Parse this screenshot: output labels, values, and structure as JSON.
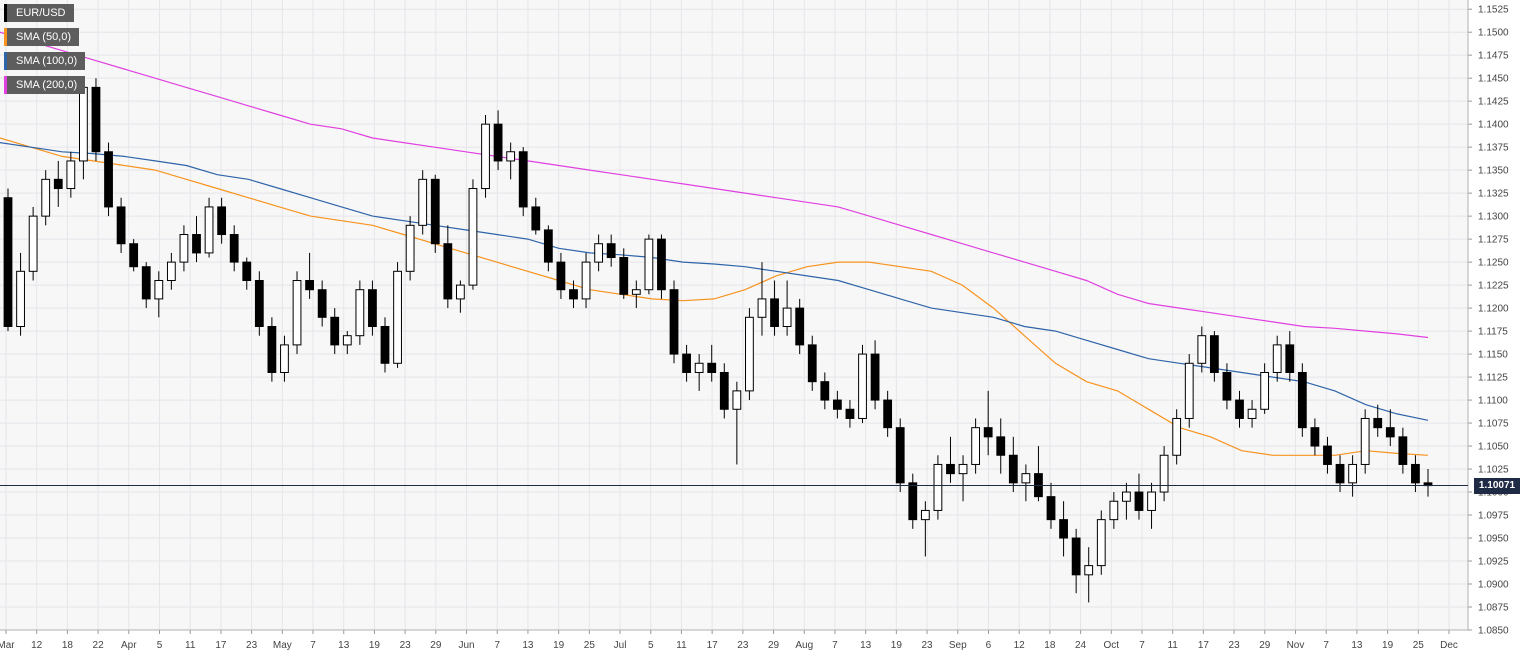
{
  "chart_data": {
    "type": "candlestick",
    "title": "",
    "xlabel": "",
    "ylabel": "",
    "ylim": [
      1.085,
      1.1535
    ],
    "grid": true,
    "legend_placement": "top-left",
    "y_ticks": [
      "1.1525",
      "1.1500",
      "1.1475",
      "1.1450",
      "1.1425",
      "1.1400",
      "1.1375",
      "1.1350",
      "1.1325",
      "1.1300",
      "1.1275",
      "1.1250",
      "1.1225",
      "1.1200",
      "1.1175",
      "1.1150",
      "1.1125",
      "1.1100",
      "1.1075",
      "1.1050",
      "1.1025",
      "1.1000",
      "1.0975",
      "1.0950",
      "1.0925",
      "1.0900",
      "1.0875",
      "1.0850"
    ],
    "x_ticks": [
      "Mar",
      "12",
      "18",
      "22",
      "Apr",
      "5",
      "11",
      "17",
      "23",
      "May",
      "7",
      "13",
      "19",
      "23",
      "29",
      "Jun",
      "7",
      "13",
      "19",
      "25",
      "Jul",
      "5",
      "11",
      "17",
      "23",
      "29",
      "Aug",
      "7",
      "13",
      "19",
      "23",
      "Sep",
      "6",
      "12",
      "18",
      "24",
      "Oct",
      "7",
      "11",
      "17",
      "23",
      "29",
      "Nov",
      "7",
      "13",
      "19",
      "25",
      "Dec"
    ],
    "current_price": "1.10071",
    "series": [
      {
        "name": "EUR/USD",
        "color": "#000000"
      },
      {
        "name": "SMA (50,0)",
        "color": "#f7931e",
        "values": [
          1.1385,
          1.1375,
          1.1365,
          1.136,
          1.1355,
          1.135,
          1.134,
          1.133,
          1.132,
          1.131,
          1.13,
          1.1295,
          1.129,
          1.128,
          1.127,
          1.126,
          1.125,
          1.124,
          1.123,
          1.122,
          1.1215,
          1.121,
          1.1208,
          1.121,
          1.122,
          1.1235,
          1.1245,
          1.125,
          1.125,
          1.1245,
          1.124,
          1.1225,
          1.12,
          1.117,
          1.114,
          1.112,
          1.111,
          1.109,
          1.107,
          1.106,
          1.1045,
          1.104,
          1.104,
          1.104,
          1.1045,
          1.1042,
          1.104
        ]
      },
      {
        "name": "SMA (100,0)",
        "color": "#2e64a8",
        "values": [
          1.138,
          1.1375,
          1.137,
          1.1368,
          1.1365,
          1.136,
          1.1355,
          1.1345,
          1.134,
          1.133,
          1.132,
          1.131,
          1.13,
          1.1295,
          1.129,
          1.1285,
          1.128,
          1.1275,
          1.1265,
          1.126,
          1.1258,
          1.1255,
          1.125,
          1.1248,
          1.1245,
          1.124,
          1.1235,
          1.123,
          1.122,
          1.121,
          1.12,
          1.1195,
          1.119,
          1.118,
          1.1175,
          1.1165,
          1.1155,
          1.1145,
          1.114,
          1.1135,
          1.113,
          1.1125,
          1.112,
          1.111,
          1.1095,
          1.1085,
          1.1078
        ]
      },
      {
        "name": "SMA (200,0)",
        "color": "#e040e0",
        "values": [
          1.15,
          1.149,
          1.148,
          1.147,
          1.146,
          1.145,
          1.144,
          1.143,
          1.142,
          1.141,
          1.14,
          1.1395,
          1.1385,
          1.138,
          1.1375,
          1.137,
          1.1365,
          1.136,
          1.1355,
          1.135,
          1.1345,
          1.134,
          1.1335,
          1.133,
          1.1325,
          1.132,
          1.1315,
          1.131,
          1.13,
          1.129,
          1.128,
          1.127,
          1.126,
          1.125,
          1.124,
          1.123,
          1.1215,
          1.1205,
          1.12,
          1.1195,
          1.119,
          1.1185,
          1.118,
          1.1178,
          1.1175,
          1.1172,
          1.1168
        ]
      }
    ],
    "candles": [
      [
        1.132,
        1.133,
        1.1175,
        1.118
      ],
      [
        1.118,
        1.126,
        1.117,
        1.124
      ],
      [
        1.124,
        1.131,
        1.123,
        1.13
      ],
      [
        1.13,
        1.135,
        1.129,
        1.134
      ],
      [
        1.134,
        1.136,
        1.131,
        1.133
      ],
      [
        1.133,
        1.137,
        1.132,
        1.136
      ],
      [
        1.136,
        1.145,
        1.134,
        1.144
      ],
      [
        1.144,
        1.145,
        1.136,
        1.137
      ],
      [
        1.137,
        1.138,
        1.13,
        1.131
      ],
      [
        1.131,
        1.132,
        1.126,
        1.127
      ],
      [
        1.127,
        1.1275,
        1.124,
        1.1245
      ],
      [
        1.1245,
        1.125,
        1.12,
        1.121
      ],
      [
        1.121,
        1.124,
        1.119,
        1.123
      ],
      [
        1.123,
        1.126,
        1.122,
        1.125
      ],
      [
        1.125,
        1.129,
        1.124,
        1.128
      ],
      [
        1.128,
        1.13,
        1.125,
        1.126
      ],
      [
        1.126,
        1.132,
        1.1255,
        1.131
      ],
      [
        1.131,
        1.132,
        1.127,
        1.128
      ],
      [
        1.128,
        1.129,
        1.124,
        1.125
      ],
      [
        1.125,
        1.1255,
        1.122,
        1.123
      ],
      [
        1.123,
        1.124,
        1.117,
        1.118
      ],
      [
        1.118,
        1.119,
        1.112,
        1.113
      ],
      [
        1.113,
        1.117,
        1.112,
        1.116
      ],
      [
        1.116,
        1.124,
        1.115,
        1.123
      ],
      [
        1.123,
        1.126,
        1.121,
        1.122
      ],
      [
        1.122,
        1.123,
        1.118,
        1.119
      ],
      [
        1.119,
        1.12,
        1.115,
        1.116
      ],
      [
        1.116,
        1.1175,
        1.115,
        1.117
      ],
      [
        1.117,
        1.123,
        1.116,
        1.122
      ],
      [
        1.122,
        1.123,
        1.117,
        1.118
      ],
      [
        1.118,
        1.119,
        1.113,
        1.114
      ],
      [
        1.114,
        1.125,
        1.1135,
        1.124
      ],
      [
        1.124,
        1.13,
        1.123,
        1.129
      ],
      [
        1.129,
        1.135,
        1.128,
        1.134
      ],
      [
        1.134,
        1.1345,
        1.126,
        1.127
      ],
      [
        1.127,
        1.129,
        1.12,
        1.121
      ],
      [
        1.121,
        1.123,
        1.1195,
        1.1225
      ],
      [
        1.1225,
        1.134,
        1.122,
        1.133
      ],
      [
        1.133,
        1.141,
        1.132,
        1.14
      ],
      [
        1.14,
        1.1415,
        1.135,
        1.136
      ],
      [
        1.136,
        1.138,
        1.134,
        1.137
      ],
      [
        1.137,
        1.1375,
        1.13,
        1.131
      ],
      [
        1.131,
        1.132,
        1.128,
        1.1285
      ],
      [
        1.1285,
        1.129,
        1.124,
        1.125
      ],
      [
        1.125,
        1.126,
        1.121,
        1.122
      ],
      [
        1.122,
        1.123,
        1.12,
        1.121
      ],
      [
        1.121,
        1.126,
        1.12,
        1.125
      ],
      [
        1.125,
        1.128,
        1.124,
        1.127
      ],
      [
        1.127,
        1.128,
        1.1245,
        1.1255
      ],
      [
        1.1255,
        1.1265,
        1.121,
        1.1215
      ],
      [
        1.1215,
        1.123,
        1.12,
        1.122
      ],
      [
        1.122,
        1.128,
        1.1215,
        1.1275
      ],
      [
        1.1275,
        1.128,
        1.121,
        1.122
      ],
      [
        1.122,
        1.123,
        1.114,
        1.115
      ],
      [
        1.115,
        1.116,
        1.112,
        1.113
      ],
      [
        1.113,
        1.115,
        1.111,
        1.114
      ],
      [
        1.114,
        1.116,
        1.112,
        1.113
      ],
      [
        1.113,
        1.114,
        1.108,
        1.109
      ],
      [
        1.109,
        1.112,
        1.103,
        1.111
      ],
      [
        1.111,
        1.12,
        1.11,
        1.119
      ],
      [
        1.119,
        1.125,
        1.117,
        1.121
      ],
      [
        1.121,
        1.123,
        1.117,
        1.118
      ],
      [
        1.118,
        1.123,
        1.117,
        1.12
      ],
      [
        1.12,
        1.121,
        1.115,
        1.116
      ],
      [
        1.116,
        1.117,
        1.111,
        1.112
      ],
      [
        1.112,
        1.113,
        1.109,
        1.11
      ],
      [
        1.11,
        1.111,
        1.108,
        1.109
      ],
      [
        1.109,
        1.11,
        1.107,
        1.108
      ],
      [
        1.108,
        1.116,
        1.1075,
        1.115
      ],
      [
        1.115,
        1.1165,
        1.109,
        1.11
      ],
      [
        1.11,
        1.111,
        1.106,
        1.107
      ],
      [
        1.107,
        1.108,
        1.1,
        1.101
      ],
      [
        1.101,
        1.102,
        1.096,
        1.097
      ],
      [
        1.097,
        1.099,
        1.093,
        1.098
      ],
      [
        1.098,
        1.104,
        1.097,
        1.103
      ],
      [
        1.103,
        1.106,
        1.101,
        1.102
      ],
      [
        1.102,
        1.104,
        1.099,
        1.103
      ],
      [
        1.103,
        1.108,
        1.102,
        1.107
      ],
      [
        1.107,
        1.111,
        1.104,
        1.106
      ],
      [
        1.106,
        1.108,
        1.102,
        1.104
      ],
      [
        1.104,
        1.106,
        1.1,
        1.101
      ],
      [
        1.101,
        1.103,
        1.099,
        1.102
      ],
      [
        1.102,
        1.105,
        1.099,
        1.0995
      ],
      [
        1.0995,
        1.101,
        1.096,
        1.097
      ],
      [
        1.097,
        1.099,
        1.093,
        1.095
      ],
      [
        1.095,
        1.096,
        1.089,
        1.091
      ],
      [
        1.091,
        1.094,
        1.088,
        1.092
      ],
      [
        1.092,
        1.098,
        1.091,
        1.097
      ],
      [
        1.097,
        1.1,
        1.096,
        1.099
      ],
      [
        1.099,
        1.101,
        1.097,
        1.1
      ],
      [
        1.1,
        1.102,
        1.097,
        1.098
      ],
      [
        1.098,
        1.101,
        1.096,
        1.1
      ],
      [
        1.1,
        1.105,
        1.099,
        1.104
      ],
      [
        1.104,
        1.109,
        1.103,
        1.108
      ],
      [
        1.108,
        1.115,
        1.107,
        1.114
      ],
      [
        1.114,
        1.118,
        1.113,
        1.117
      ],
      [
        1.117,
        1.1175,
        1.112,
        1.113
      ],
      [
        1.113,
        1.114,
        1.109,
        1.11
      ],
      [
        1.11,
        1.111,
        1.107,
        1.108
      ],
      [
        1.108,
        1.11,
        1.107,
        1.109
      ],
      [
        1.109,
        1.114,
        1.1085,
        1.113
      ],
      [
        1.113,
        1.117,
        1.112,
        1.116
      ],
      [
        1.116,
        1.1175,
        1.112,
        1.113
      ],
      [
        1.113,
        1.114,
        1.106,
        1.107
      ],
      [
        1.107,
        1.108,
        1.104,
        1.105
      ],
      [
        1.105,
        1.106,
        1.102,
        1.103
      ],
      [
        1.103,
        1.104,
        1.1,
        1.101
      ],
      [
        1.101,
        1.104,
        1.0995,
        1.103
      ],
      [
        1.103,
        1.109,
        1.102,
        1.108
      ],
      [
        1.108,
        1.1095,
        1.106,
        1.107
      ],
      [
        1.107,
        1.109,
        1.105,
        1.106
      ],
      [
        1.106,
        1.107,
        1.102,
        1.103
      ],
      [
        1.103,
        1.104,
        1.1,
        1.101
      ],
      [
        1.101,
        1.1025,
        1.0995,
        1.1007
      ]
    ]
  },
  "legend": [
    {
      "label": "EUR/USD",
      "color": "#000000"
    },
    {
      "label": "SMA (50,0)",
      "color": "#f7931e"
    },
    {
      "label": "SMA (100,0)",
      "color": "#2e64a8"
    },
    {
      "label": "SMA (200,0)",
      "color": "#e040e0"
    }
  ]
}
